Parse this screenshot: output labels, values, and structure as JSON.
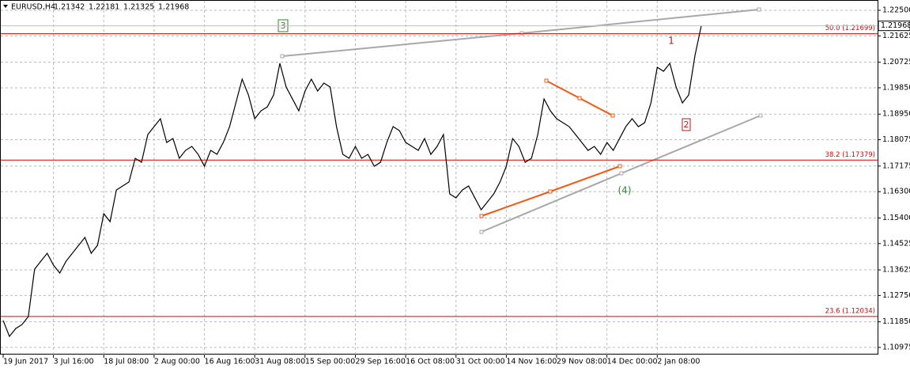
{
  "chart_data": {
    "type": "line",
    "header": {
      "symbol": "EURUSD,H4",
      "open": 1.21342,
      "high": 1.22181,
      "low": 1.21325,
      "close": 1.21968
    },
    "categories": [
      "19 Jun 2017",
      null,
      null,
      null,
      null,
      null,
      null,
      null,
      "3 Jul 16:00",
      null,
      null,
      null,
      null,
      null,
      null,
      null,
      "18 Jul 08:00",
      null,
      null,
      null,
      null,
      null,
      null,
      null,
      "2 Aug 00:00",
      null,
      null,
      null,
      null,
      null,
      null,
      null,
      "16 Aug 16:00",
      null,
      null,
      null,
      null,
      null,
      null,
      null,
      "31 Aug 08:00",
      null,
      null,
      null,
      null,
      null,
      null,
      null,
      "15 Sep 00:00",
      null,
      null,
      null,
      null,
      null,
      null,
      null,
      "29 Sep 16:00",
      null,
      null,
      null,
      null,
      null,
      null,
      null,
      "16 Oct 08:00",
      null,
      null,
      null,
      null,
      null,
      null,
      null,
      "31 Oct 00:00",
      null,
      null,
      null,
      null,
      null,
      null,
      null,
      "14 Nov 16:00",
      null,
      null,
      null,
      null,
      null,
      null,
      null,
      "29 Nov 08:00",
      null,
      null,
      null,
      null,
      null,
      null,
      null,
      "14 Dec 00:00",
      null,
      null,
      null,
      null,
      null,
      null,
      null,
      "2 Jan 08:00",
      null,
      null,
      null,
      null,
      null,
      null,
      null
    ],
    "values": [
      1.11893,
      1.11351,
      1.11622,
      1.11757,
      1.12028,
      1.13651,
      1.13922,
      1.14193,
      1.13787,
      1.13516,
      1.13922,
      1.14193,
      1.14463,
      1.14734,
      1.14193,
      1.14463,
      1.15546,
      1.15275,
      1.16357,
      1.16493,
      1.16628,
      1.1744,
      1.17304,
      1.18252,
      1.18522,
      1.18793,
      1.17981,
      1.18116,
      1.1744,
      1.1771,
      1.17846,
      1.17575,
      1.17169,
      1.1771,
      1.17575,
      1.17981,
      1.18522,
      1.19334,
      1.20146,
      1.19605,
      1.18793,
      1.19063,
      1.19199,
      1.19605,
      1.20687,
      1.19875,
      1.19469,
      1.19063,
      1.1974,
      1.20146,
      1.1974,
      1.2001,
      1.19875,
      1.18522,
      1.17575,
      1.1744,
      1.17846,
      1.1744,
      1.17575,
      1.17169,
      1.17304,
      1.17981,
      1.18522,
      1.18387,
      1.17981,
      1.17846,
      1.1771,
      1.18116,
      1.17575,
      1.17846,
      1.18252,
      1.16222,
      1.16087,
      1.16357,
      1.16493,
      1.16087,
      1.15681,
      1.15951,
      1.16222,
      1.16628,
      1.17169,
      1.18116,
      1.17846,
      1.17304,
      1.1744,
      1.18252,
      1.19469,
      1.19063,
      1.18793,
      1.18657,
      1.18522,
      1.18252,
      1.17981,
      1.1771,
      1.17846,
      1.17575,
      1.17981,
      1.1771,
      1.18116,
      1.18522,
      1.18793,
      1.18522,
      1.18657,
      1.19334,
      1.20552,
      1.20416,
      1.20687,
      1.19875,
      1.19334,
      1.19605,
      1.20958,
      1.21968
    ],
    "color": "#000000",
    "ylim": [
      1.10731,
      1.22852
    ],
    "yticks": [
      {
        "value": 1.225,
        "label": "1.22500"
      },
      1.21625,
      1.20725,
      {
        "value": 1.1985,
        "label": "1.19850"
      },
      {
        "value": 1.1895,
        "label": "1.18950"
      },
      1.18075,
      1.17175,
      {
        "value": 1.163,
        "label": "1.16300"
      },
      {
        "value": 1.154,
        "label": "1.15400"
      },
      1.14525,
      1.13625,
      {
        "value": 1.1275,
        "label": "1.12750"
      },
      {
        "value": 1.1185,
        "label": "1.11850"
      },
      1.10975
    ],
    "grid": true,
    "last_price": 1.21968,
    "levels": [
      {
        "label": "50.0 (1.21699)",
        "value": 1.21699
      },
      {
        "label": "38.2 (1.17379)",
        "value": 1.17379
      },
      {
        "label": "23.6 (1.12034)",
        "value": 1.12034
      }
    ],
    "level_color": "#e00000",
    "annotations": [
      "3",
      "1",
      "2",
      "(4)"
    ]
  }
}
